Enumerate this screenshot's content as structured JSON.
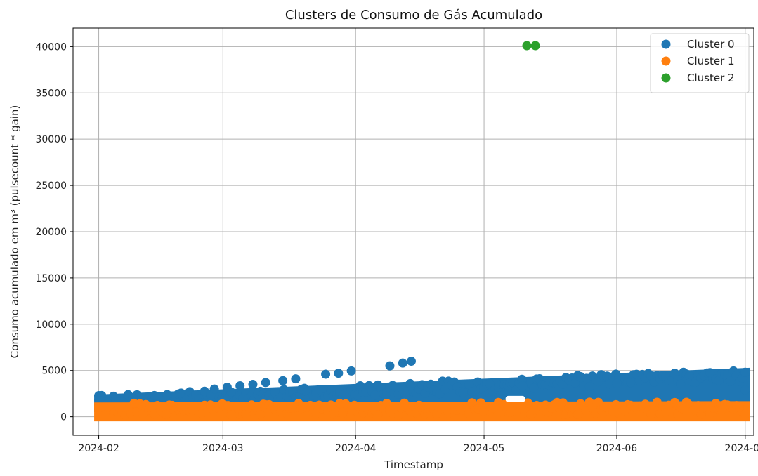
{
  "chart_data": {
    "type": "scatter",
    "title": "Clusters de Consumo de Gás Acumulado",
    "xlabel": "Timestamp",
    "ylabel": "Consumo acumulado em m³ (pulsecount * gain)",
    "x_type": "date",
    "xlim": [
      "2024-01-26",
      "2024-07-03"
    ],
    "ylim": [
      -2000,
      42000
    ],
    "x_ticks": [
      "2024-02-01",
      "2024-03-01",
      "2024-04-01",
      "2024-05-01",
      "2024-06-01",
      "2024-07-01"
    ],
    "x_tick_labels": [
      "2024-02",
      "2024-03",
      "2024-04",
      "2024-05",
      "2024-06",
      "2024-07"
    ],
    "y_ticks": [
      0,
      5000,
      10000,
      15000,
      20000,
      25000,
      30000,
      35000,
      40000
    ],
    "y_tick_labels": [
      "0",
      "5000",
      "10000",
      "15000",
      "20000",
      "25000",
      "30000",
      "35000",
      "40000"
    ],
    "grid": true,
    "legend_position": "top-right",
    "series": [
      {
        "name": "Cluster 0",
        "color": "#1f77b4",
        "bands": [
          {
            "start": "2024-02-01",
            "end": "2024-07-01",
            "low": 1000,
            "high_start": 1900,
            "high_end": 4800
          }
        ],
        "points": [
          {
            "x": "2024-02-01",
            "y": 1800
          },
          {
            "x": "2024-02-05",
            "y": 1900
          },
          {
            "x": "2024-02-09",
            "y": 2000
          },
          {
            "x": "2024-02-14",
            "y": 2300
          },
          {
            "x": "2024-02-17",
            "y": 2400
          },
          {
            "x": "2024-02-20",
            "y": 2500
          },
          {
            "x": "2024-02-28",
            "y": 3000
          },
          {
            "x": "2024-03-02",
            "y": 3200
          },
          {
            "x": "2024-03-05",
            "y": 3350
          },
          {
            "x": "2024-03-08",
            "y": 3500
          },
          {
            "x": "2024-03-11",
            "y": 3700
          },
          {
            "x": "2024-03-15",
            "y": 3900
          },
          {
            "x": "2024-03-18",
            "y": 4100
          },
          {
            "x": "2024-03-25",
            "y": 4600
          },
          {
            "x": "2024-03-28",
            "y": 4700
          },
          {
            "x": "2024-03-31",
            "y": 4950
          },
          {
            "x": "2024-04-09",
            "y": 5500
          },
          {
            "x": "2024-04-12",
            "y": 5800
          },
          {
            "x": "2024-04-14",
            "y": 6000
          },
          {
            "x": "2024-05-10",
            "y": 3350
          },
          {
            "x": "2024-06-01",
            "y": 3600
          },
          {
            "x": "2024-07-01",
            "y": 4800
          },
          {
            "x": "2024-07-01",
            "y": 2900
          }
        ]
      },
      {
        "name": "Cluster 1",
        "color": "#ff7f0e",
        "bands": [
          {
            "start": "2024-02-01",
            "end": "2024-07-01",
            "low": 0,
            "high_start": 1050,
            "high_end": 1200
          }
        ],
        "points": []
      },
      {
        "name": "Cluster 2",
        "color": "#2ca02c",
        "bands": [],
        "points": [
          {
            "x": "2024-05-11",
            "y": 40100
          },
          {
            "x": "2024-05-13",
            "y": 40100
          }
        ]
      }
    ]
  }
}
